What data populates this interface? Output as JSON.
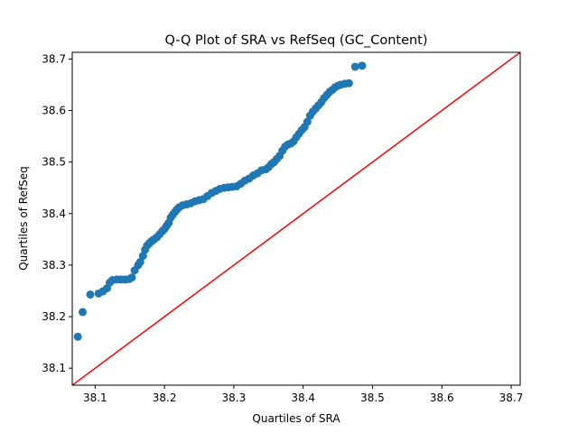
{
  "chart_data": {
    "type": "scatter",
    "title": "Q-Q Plot of SRA vs RefSeq (GC_Content)",
    "xlabel": "Quartiles of SRA",
    "ylabel": "Quartiles of RefSeq",
    "xlim": [
      38.067,
      38.713
    ],
    "ylim": [
      38.067,
      38.713
    ],
    "xticks": [
      "38.1",
      "38.2",
      "38.3",
      "38.4",
      "38.5",
      "38.6",
      "38.7"
    ],
    "yticks": [
      "38.1",
      "38.2",
      "38.3",
      "38.4",
      "38.5",
      "38.6",
      "38.7"
    ],
    "grid": false,
    "legend": "none",
    "point_color": "#1f77b4",
    "reference_line": {
      "x": [
        38.067,
        38.713
      ],
      "y": [
        38.067,
        38.713
      ],
      "color": "#ff0000"
    },
    "series": [
      {
        "x": [
          38.075,
          38.082,
          38.093,
          38.105,
          38.111,
          38.117,
          38.121,
          38.125,
          38.131,
          38.137,
          38.143,
          38.149,
          38.153,
          38.157,
          38.162,
          38.165,
          38.169,
          38.172,
          38.175,
          38.178,
          38.18,
          38.182,
          38.185,
          38.189,
          38.193,
          38.197,
          38.2,
          38.203,
          38.206,
          38.209,
          38.212,
          38.215,
          38.218,
          38.221,
          38.226,
          38.232,
          38.238,
          38.244,
          38.25,
          38.256,
          38.262,
          38.268,
          38.274,
          38.28,
          38.286,
          38.292,
          38.298,
          38.304,
          38.31,
          38.316,
          38.322,
          38.328,
          38.334,
          38.34,
          38.346,
          38.35,
          38.354,
          38.358,
          38.362,
          38.366,
          38.37,
          38.374,
          38.378,
          38.382,
          38.386,
          38.39,
          38.394,
          38.398,
          38.402,
          38.406,
          38.41,
          38.414,
          38.418,
          38.422,
          38.426,
          38.43,
          38.434,
          38.438,
          38.442,
          38.446,
          38.45,
          38.454,
          38.46,
          38.466,
          38.475,
          38.485
        ],
        "y": [
          38.161,
          38.209,
          38.243,
          38.245,
          38.249,
          38.255,
          38.266,
          38.271,
          38.272,
          38.272,
          38.272,
          38.273,
          38.276,
          38.29,
          38.3,
          38.306,
          38.318,
          38.33,
          38.338,
          38.342,
          38.345,
          38.347,
          38.35,
          38.354,
          38.36,
          38.366,
          38.37,
          38.376,
          38.382,
          38.392,
          38.398,
          38.403,
          38.408,
          38.412,
          38.416,
          38.418,
          38.42,
          38.424,
          38.426,
          38.428,
          38.434,
          38.44,
          38.444,
          38.448,
          38.45,
          38.451,
          38.452,
          38.453,
          38.458,
          38.464,
          38.468,
          38.474,
          38.478,
          38.484,
          38.486,
          38.49,
          38.496,
          38.5,
          38.506,
          38.512,
          38.522,
          38.53,
          38.534,
          38.536,
          38.54,
          38.548,
          38.555,
          38.562,
          38.568,
          38.578,
          38.59,
          38.598,
          38.604,
          38.61,
          38.616,
          38.624,
          38.63,
          38.636,
          38.64,
          38.645,
          38.648,
          38.65,
          38.652,
          38.653,
          38.685,
          38.687
        ]
      }
    ]
  }
}
